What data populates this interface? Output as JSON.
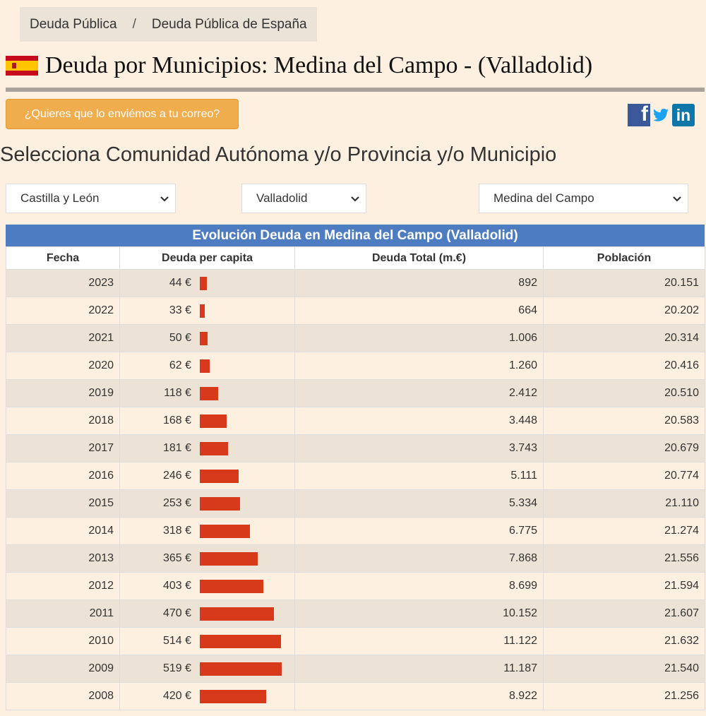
{
  "breadcrumb": {
    "item1": "Deuda Pública",
    "separator": "/",
    "item2": "Deuda Pública de España"
  },
  "page_title": "Deuda por Municipios: Medina del Campo - (Valladolid)",
  "flag_icon": "spain-flag-icon",
  "email_button": "¿Quieres que lo enviémos a tu correo?",
  "social": {
    "facebook": "f",
    "linkedin": "in"
  },
  "select_heading": "Selecciona Comunidad Autónoma y/o Provincia y/o Municipio",
  "selects": {
    "comunidad": "Castilla y León",
    "provincia": "Valladolid",
    "municipio": "Medina del Campo"
  },
  "table": {
    "title": "Evolución Deuda en Medina del Campo (Valladolid)",
    "headers": [
      "Fecha",
      "Deuda per capita",
      "Deuda Total (m.€)",
      "Población"
    ],
    "bar_color": "#d63a1a",
    "bar_max_value": 519,
    "rows": [
      {
        "fecha": "2023",
        "per_capita": "44 €",
        "per_capita_value": 44,
        "total": "892",
        "poblacion": "20.151"
      },
      {
        "fecha": "2022",
        "per_capita": "33 €",
        "per_capita_value": 33,
        "total": "664",
        "poblacion": "20.202"
      },
      {
        "fecha": "2021",
        "per_capita": "50 €",
        "per_capita_value": 50,
        "total": "1.006",
        "poblacion": "20.314"
      },
      {
        "fecha": "2020",
        "per_capita": "62 €",
        "per_capita_value": 62,
        "total": "1.260",
        "poblacion": "20.416"
      },
      {
        "fecha": "2019",
        "per_capita": "118 €",
        "per_capita_value": 118,
        "total": "2.412",
        "poblacion": "20.510"
      },
      {
        "fecha": "2018",
        "per_capita": "168 €",
        "per_capita_value": 168,
        "total": "3.448",
        "poblacion": "20.583"
      },
      {
        "fecha": "2017",
        "per_capita": "181 €",
        "per_capita_value": 181,
        "total": "3.743",
        "poblacion": "20.679"
      },
      {
        "fecha": "2016",
        "per_capita": "246 €",
        "per_capita_value": 246,
        "total": "5.111",
        "poblacion": "20.774"
      },
      {
        "fecha": "2015",
        "per_capita": "253 €",
        "per_capita_value": 253,
        "total": "5.334",
        "poblacion": "21.110"
      },
      {
        "fecha": "2014",
        "per_capita": "318 €",
        "per_capita_value": 318,
        "total": "6.775",
        "poblacion": "21.274"
      },
      {
        "fecha": "2013",
        "per_capita": "365 €",
        "per_capita_value": 365,
        "total": "7.868",
        "poblacion": "21.556"
      },
      {
        "fecha": "2012",
        "per_capita": "403 €",
        "per_capita_value": 403,
        "total": "8.699",
        "poblacion": "21.594"
      },
      {
        "fecha": "2011",
        "per_capita": "470 €",
        "per_capita_value": 470,
        "total": "10.152",
        "poblacion": "21.607"
      },
      {
        "fecha": "2010",
        "per_capita": "514 €",
        "per_capita_value": 514,
        "total": "11.122",
        "poblacion": "21.632"
      },
      {
        "fecha": "2009",
        "per_capita": "519 €",
        "per_capita_value": 519,
        "total": "11.187",
        "poblacion": "21.540"
      },
      {
        "fecha": "2008",
        "per_capita": "420 €",
        "per_capita_value": 420,
        "total": "8.922",
        "poblacion": "21.256"
      }
    ]
  }
}
